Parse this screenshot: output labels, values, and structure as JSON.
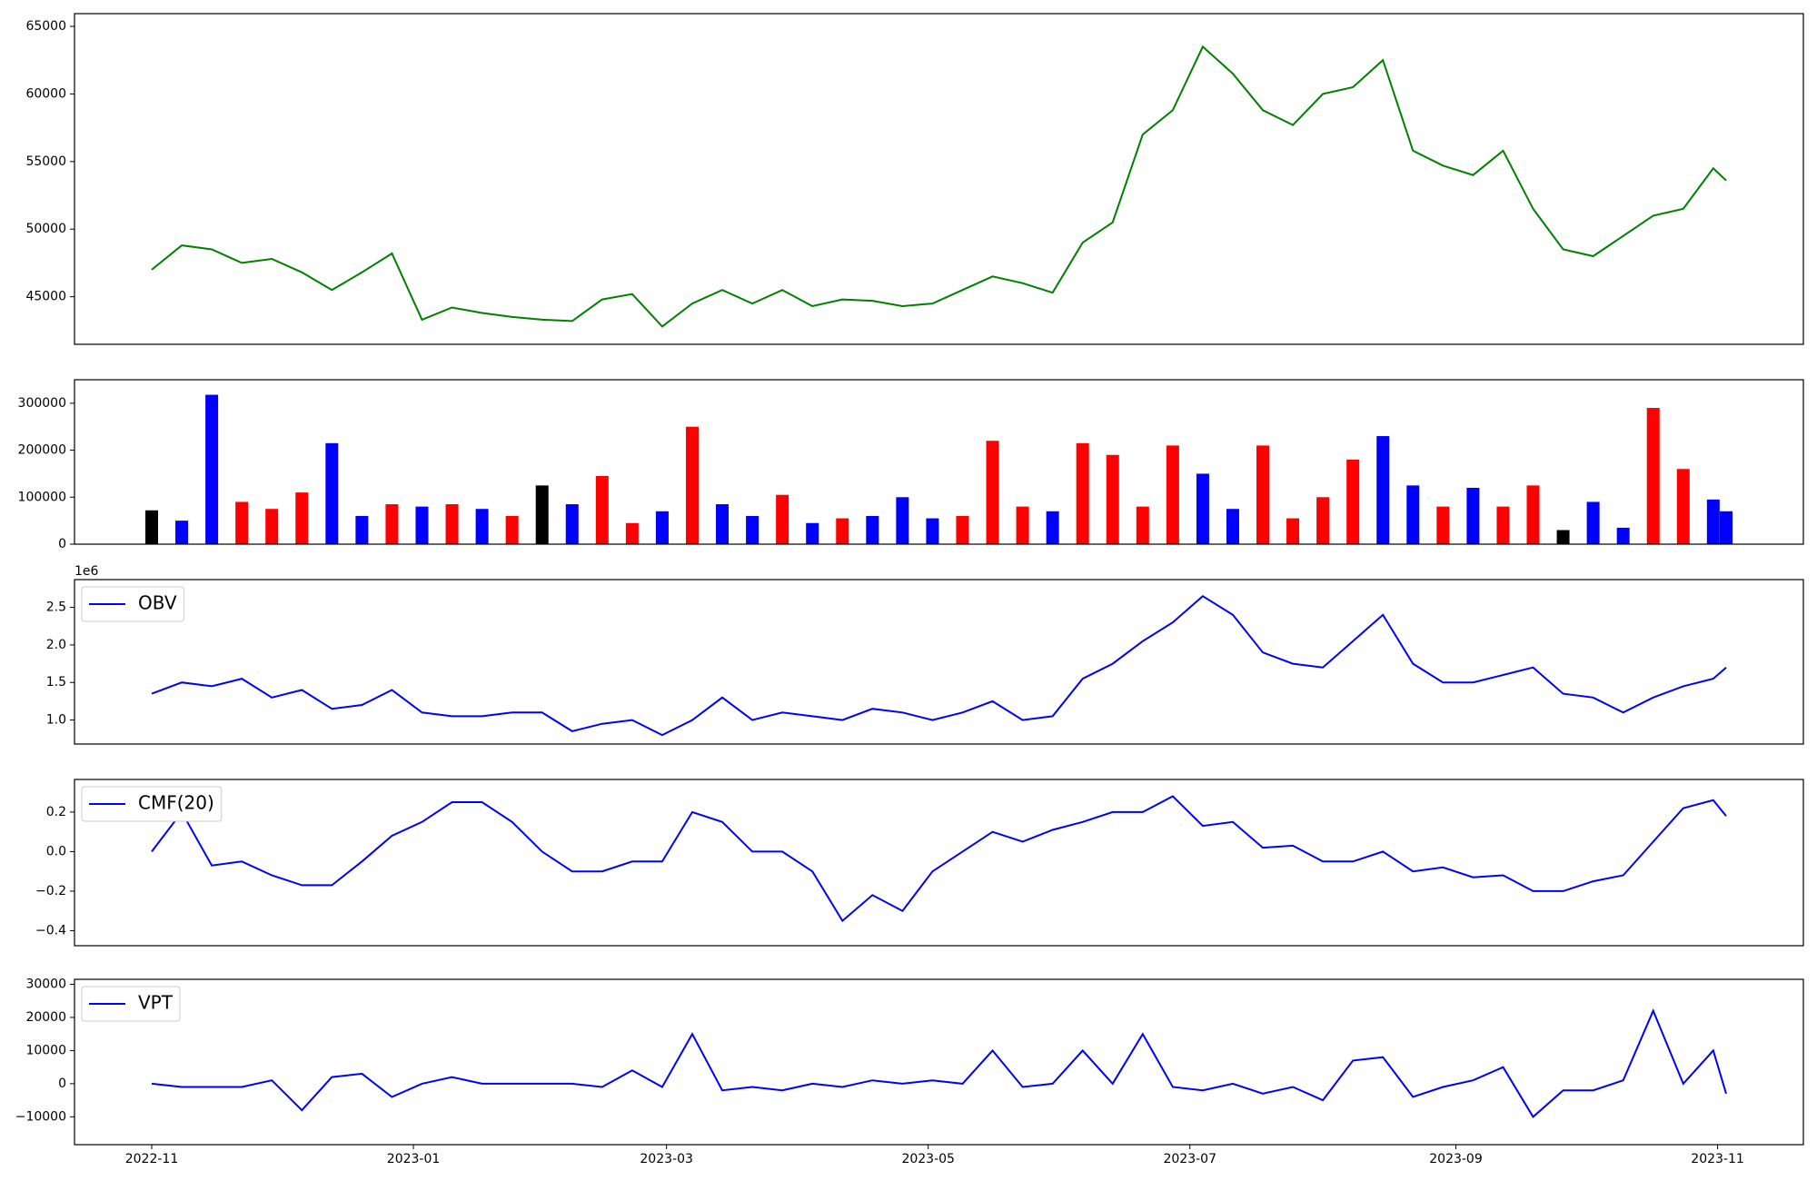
{
  "chart_data": {
    "type": "panels",
    "x": [
      "2022-11-01",
      "2022-11-08",
      "2022-11-15",
      "2022-11-22",
      "2022-11-29",
      "2022-12-06",
      "2022-12-13",
      "2022-12-20",
      "2022-12-27",
      "2023-01-03",
      "2023-01-10",
      "2023-01-17",
      "2023-01-24",
      "2023-01-31",
      "2023-02-07",
      "2023-02-14",
      "2023-02-21",
      "2023-02-28",
      "2023-03-07",
      "2023-03-14",
      "2023-03-21",
      "2023-03-28",
      "2023-04-04",
      "2023-04-11",
      "2023-04-18",
      "2023-04-25",
      "2023-05-02",
      "2023-05-09",
      "2023-05-16",
      "2023-05-23",
      "2023-05-30",
      "2023-06-06",
      "2023-06-13",
      "2023-06-20",
      "2023-06-27",
      "2023-07-04",
      "2023-07-11",
      "2023-07-18",
      "2023-07-25",
      "2023-08-01",
      "2023-08-08",
      "2023-08-15",
      "2023-08-22",
      "2023-08-29",
      "2023-09-05",
      "2023-09-12",
      "2023-09-19",
      "2023-09-26",
      "2023-10-03",
      "2023-10-10",
      "2023-10-17",
      "2023-10-24",
      "2023-10-31",
      "2023-11-03"
    ],
    "xlim": [
      "2022-10-14",
      "2023-11-21"
    ],
    "xticks": [
      {
        "value": "2022-11-01",
        "label": "2022-11"
      },
      {
        "value": "2023-01-01",
        "label": "2023-01"
      },
      {
        "value": "2023-03-01",
        "label": "2023-03"
      },
      {
        "value": "2023-05-01",
        "label": "2023-05"
      },
      {
        "value": "2023-07-01",
        "label": "2023-07"
      },
      {
        "value": "2023-09-01",
        "label": "2023-09"
      },
      {
        "value": "2023-11-01",
        "label": "2023-11"
      }
    ],
    "panels": [
      {
        "type": "line",
        "ylim": [
          41480,
          65944
        ],
        "yticks": [
          45000,
          50000,
          55000,
          60000,
          65000
        ],
        "series": [
          {
            "color": "green",
            "values": [
              47000,
              48800,
              48500,
              47500,
              47800,
              46800,
              45500,
              46800,
              48200,
              43300,
              44200,
              43800,
              43500,
              43300,
              43200,
              44800,
              45200,
              42800,
              44500,
              45500,
              44500,
              45500,
              44300,
              44800,
              44700,
              44300,
              44500,
              45500,
              46500,
              46000,
              45300,
              49000,
              50500,
              57000,
              58800,
              63500,
              61500,
              58800,
              57700,
              60000,
              60500,
              62500,
              55800,
              54700,
              54000,
              55800,
              51500,
              48500,
              48000,
              49500,
              51000,
              51500,
              54500,
              53600
            ]
          }
        ]
      },
      {
        "type": "bar",
        "ylim": [
          0,
          350000
        ],
        "yticks": [
          0,
          100000,
          200000,
          300000
        ],
        "values": [
          72000,
          50000,
          318000,
          90000,
          75000,
          110000,
          215000,
          60000,
          85000,
          80000,
          85000,
          75000,
          60000,
          125000,
          85000,
          145000,
          45000,
          70000,
          250000,
          85000,
          60000,
          105000,
          45000,
          55000,
          60000,
          100000,
          55000,
          60000,
          220000,
          80000,
          70000,
          215000,
          190000,
          80000,
          210000,
          150000,
          75000,
          210000,
          55000,
          100000,
          180000,
          230000,
          125000,
          80000,
          120000,
          80000,
          125000,
          30000,
          90000,
          35000,
          290000,
          160000,
          95000,
          70000
        ],
        "colors": [
          "black",
          "blue",
          "blue",
          "red",
          "red",
          "red",
          "blue",
          "blue",
          "red",
          "blue",
          "red",
          "blue",
          "red",
          "black",
          "blue",
          "red",
          "red",
          "blue",
          "red",
          "blue",
          "blue",
          "red",
          "blue",
          "red",
          "blue",
          "blue",
          "blue",
          "red",
          "red",
          "red",
          "blue",
          "red",
          "red",
          "red",
          "red",
          "blue",
          "blue",
          "red",
          "red",
          "red",
          "red",
          "blue",
          "blue",
          "red",
          "blue",
          "red",
          "red",
          "black",
          "blue",
          "blue",
          "red",
          "red",
          "blue",
          "blue"
        ]
      },
      {
        "type": "line",
        "ylim": [
          0.68,
          2.87
        ],
        "offset_text": "1e6",
        "legend": "upper left",
        "yticks": [
          {
            "value": 1,
            "label": "1.0"
          },
          {
            "value": 1.5,
            "label": "1.5"
          },
          {
            "value": 2,
            "label": "2.0"
          },
          {
            "value": 2.5,
            "label": "2.5"
          }
        ],
        "series": [
          {
            "name": "OBV",
            "color": "blue",
            "values": [
              1.35,
              1.5,
              1.45,
              1.55,
              1.3,
              1.4,
              1.15,
              1.2,
              1.4,
              1.1,
              1.05,
              1.05,
              1.1,
              1.1,
              0.85,
              0.95,
              1,
              0.8,
              1,
              1.3,
              1,
              1.1,
              1.05,
              1,
              1.15,
              1.1,
              1,
              1.1,
              1.25,
              1,
              1.05,
              1.55,
              1.75,
              2.05,
              2.3,
              2.65,
              2.4,
              1.9,
              1.75,
              1.7,
              2.05,
              2.4,
              1.75,
              1.5,
              1.5,
              1.6,
              1.7,
              1.35,
              1.3,
              1.1,
              1.3,
              1.45,
              1.55,
              1.7
            ]
          }
        ]
      },
      {
        "type": "line",
        "ylim": [
          -0.476,
          0.365
        ],
        "legend": "upper left",
        "yticks": [
          {
            "value": -0.4,
            "label": "−0.4"
          },
          {
            "value": -0.2,
            "label": "−0.2"
          },
          {
            "value": 0,
            "label": "0.0"
          },
          {
            "value": 0.2,
            "label": "0.2"
          }
        ],
        "series": [
          {
            "name": "CMF(20)",
            "color": "blue",
            "values": [
              0,
              0.2,
              -0.07,
              -0.05,
              -0.12,
              -0.17,
              -0.17,
              -0.05,
              0.08,
              0.15,
              0.25,
              0.25,
              0.15,
              0,
              -0.1,
              -0.1,
              -0.05,
              -0.05,
              0.2,
              0.15,
              0,
              0,
              -0.1,
              -0.35,
              -0.22,
              -0.3,
              -0.1,
              0,
              0.1,
              0.05,
              0.11,
              0.15,
              0.2,
              0.2,
              0.28,
              0.13,
              0.15,
              0.02,
              0.03,
              -0.05,
              -0.05,
              0,
              -0.1,
              -0.08,
              -0.13,
              -0.12,
              -0.2,
              -0.2,
              -0.15,
              -0.12,
              0.05,
              0.22,
              0.26,
              0.18
            ]
          }
        ]
      },
      {
        "type": "line",
        "ylim": [
          -18400,
          31500
        ],
        "legend": "upper left",
        "yticks": [
          {
            "value": -10000,
            "label": "−10000"
          },
          0,
          10000,
          20000,
          30000
        ],
        "series": [
          {
            "name": "VPT",
            "color": "blue",
            "values": [
              0,
              -1000,
              -1000,
              -1000,
              1000,
              -8000,
              2000,
              3000,
              -4000,
              0,
              2000,
              0,
              0,
              0,
              0,
              -1000,
              4000,
              -1000,
              15000,
              -2000,
              -1000,
              -2000,
              0,
              -1000,
              1000,
              0,
              1000,
              0,
              10000,
              -1000,
              0,
              10000,
              0,
              15000,
              -1000,
              -2000,
              0,
              -3000,
              -1000,
              -5000,
              7000,
              8000,
              -4000,
              -1000,
              1000,
              5000,
              -10000,
              -2000,
              -2000,
              1000,
              22000,
              0,
              10000,
              -3000
            ]
          }
        ]
      }
    ]
  }
}
